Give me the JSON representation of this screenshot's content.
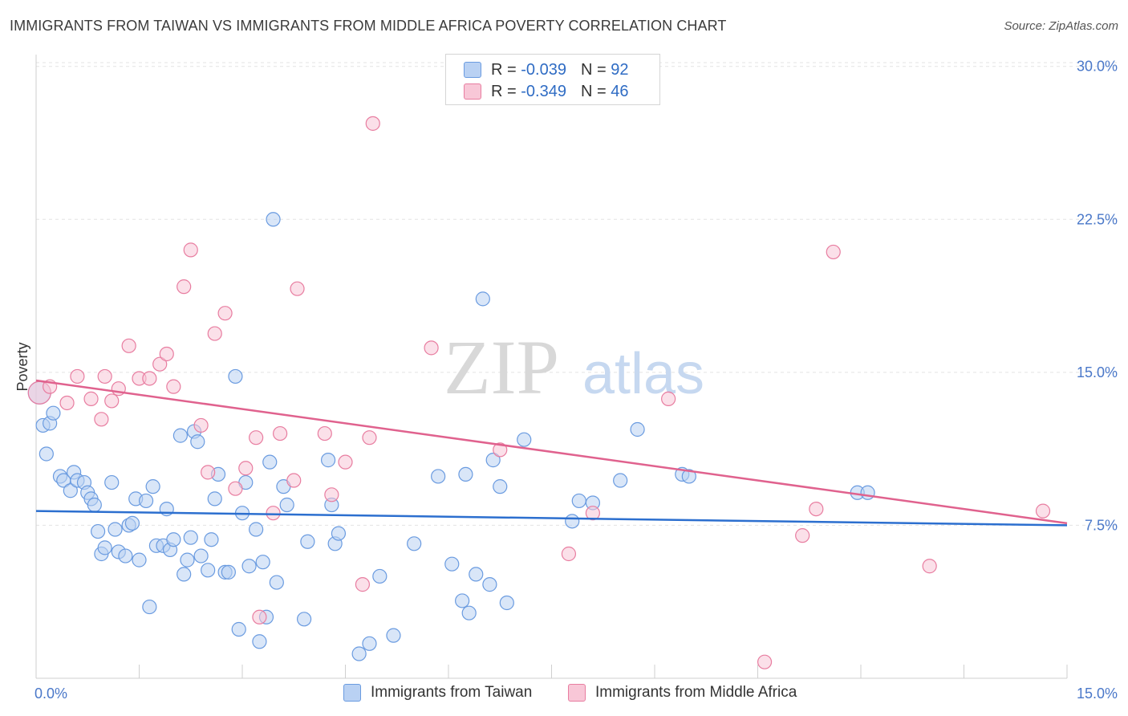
{
  "header": {
    "title": "IMMIGRANTS FROM TAIWAN VS IMMIGRANTS FROM MIDDLE AFRICA POVERTY CORRELATION CHART",
    "source": "Source: ZipAtlas.com"
  },
  "watermark": {
    "zip": "ZIP",
    "atlas": "atlas"
  },
  "legend": {
    "rows": [
      {
        "r_label": "R =",
        "r_value": "-0.039",
        "n_label": "N =",
        "n_value": "92"
      },
      {
        "r_label": "R =",
        "r_value": "-0.349",
        "n_label": "N =",
        "n_value": "46"
      }
    ]
  },
  "chart_data": {
    "type": "scatter",
    "ylabel": "Poverty",
    "xlim": [
      0,
      15
    ],
    "ylim": [
      0,
      30.5
    ],
    "x_tick_labels": [
      "0.0%",
      "15.0%"
    ],
    "y_ticks": [
      7.5,
      15.0,
      22.5,
      30.0
    ],
    "y_tick_labels": [
      "7.5%",
      "15.0%",
      "22.5%",
      "30.0%"
    ],
    "grid": true,
    "legend_position": "bottom",
    "series": [
      {
        "name": "Immigrants from Taiwan",
        "color": "#6a9be0",
        "fill": "#b9d1f3",
        "trend": {
          "x": [
            0,
            15
          ],
          "y": [
            8.2,
            7.5
          ]
        },
        "points": [
          [
            0.1,
            12.4
          ],
          [
            0.15,
            11.0
          ],
          [
            0.2,
            12.5
          ],
          [
            0.25,
            13.0
          ],
          [
            0.35,
            9.9
          ],
          [
            0.4,
            9.7
          ],
          [
            0.5,
            9.2
          ],
          [
            0.55,
            10.1
          ],
          [
            0.6,
            9.7
          ],
          [
            0.7,
            9.6
          ],
          [
            0.75,
            9.1
          ],
          [
            0.8,
            8.8
          ],
          [
            0.85,
            8.5
          ],
          [
            0.9,
            7.2
          ],
          [
            0.95,
            6.1
          ],
          [
            1.0,
            6.4
          ],
          [
            1.1,
            9.6
          ],
          [
            1.15,
            7.3
          ],
          [
            1.2,
            6.2
          ],
          [
            1.3,
            6.0
          ],
          [
            1.35,
            7.5
          ],
          [
            1.4,
            7.6
          ],
          [
            1.45,
            8.8
          ],
          [
            1.5,
            5.8
          ],
          [
            1.6,
            8.7
          ],
          [
            1.65,
            3.5
          ],
          [
            1.7,
            9.4
          ],
          [
            1.75,
            6.5
          ],
          [
            1.85,
            6.5
          ],
          [
            1.9,
            8.3
          ],
          [
            1.95,
            6.3
          ],
          [
            2.0,
            6.8
          ],
          [
            2.1,
            11.9
          ],
          [
            2.15,
            5.1
          ],
          [
            2.2,
            5.8
          ],
          [
            2.25,
            6.9
          ],
          [
            2.3,
            12.1
          ],
          [
            2.35,
            11.6
          ],
          [
            2.4,
            6.0
          ],
          [
            2.5,
            5.3
          ],
          [
            2.55,
            6.8
          ],
          [
            2.6,
            8.8
          ],
          [
            2.65,
            10.0
          ],
          [
            2.75,
            5.2
          ],
          [
            2.8,
            5.2
          ],
          [
            2.9,
            14.8
          ],
          [
            2.95,
            2.4
          ],
          [
            3.0,
            8.1
          ],
          [
            3.05,
            9.6
          ],
          [
            3.1,
            5.5
          ],
          [
            3.2,
            7.3
          ],
          [
            3.25,
            1.8
          ],
          [
            3.3,
            5.7
          ],
          [
            3.35,
            3.0
          ],
          [
            3.4,
            10.6
          ],
          [
            3.45,
            22.5
          ],
          [
            3.5,
            4.7
          ],
          [
            3.6,
            9.4
          ],
          [
            3.65,
            8.5
          ],
          [
            3.9,
            2.9
          ],
          [
            3.95,
            6.7
          ],
          [
            4.25,
            10.7
          ],
          [
            4.3,
            8.5
          ],
          [
            4.35,
            6.6
          ],
          [
            4.4,
            7.1
          ],
          [
            4.7,
            1.2
          ],
          [
            4.85,
            1.7
          ],
          [
            5.0,
            5.0
          ],
          [
            5.2,
            2.1
          ],
          [
            5.5,
            6.6
          ],
          [
            5.85,
            9.9
          ],
          [
            6.05,
            5.6
          ],
          [
            6.2,
            3.8
          ],
          [
            6.25,
            10.0
          ],
          [
            6.3,
            3.2
          ],
          [
            6.4,
            5.1
          ],
          [
            6.5,
            18.6
          ],
          [
            6.6,
            4.6
          ],
          [
            6.65,
            10.7
          ],
          [
            6.75,
            9.4
          ],
          [
            6.85,
            3.7
          ],
          [
            7.1,
            11.7
          ],
          [
            7.8,
            7.7
          ],
          [
            7.9,
            8.7
          ],
          [
            8.1,
            8.6
          ],
          [
            8.5,
            9.7
          ],
          [
            8.75,
            12.2
          ],
          [
            9.4,
            10.0
          ],
          [
            9.5,
            9.9
          ],
          [
            11.95,
            9.1
          ],
          [
            12.1,
            9.1
          ],
          [
            0.05,
            14.0
          ]
        ]
      },
      {
        "name": "Immigrants from Middle Africa",
        "color": "#e87da0",
        "fill": "#f8c7d7",
        "trend": {
          "x": [
            0,
            15
          ],
          "y": [
            14.6,
            7.6
          ]
        },
        "points": [
          [
            0.05,
            14.0
          ],
          [
            0.2,
            14.3
          ],
          [
            0.45,
            13.5
          ],
          [
            0.6,
            14.8
          ],
          [
            0.8,
            13.7
          ],
          [
            0.95,
            12.7
          ],
          [
            1.0,
            14.8
          ],
          [
            1.1,
            13.6
          ],
          [
            1.2,
            14.2
          ],
          [
            1.35,
            16.3
          ],
          [
            1.5,
            14.7
          ],
          [
            1.65,
            14.7
          ],
          [
            1.8,
            15.4
          ],
          [
            1.9,
            15.9
          ],
          [
            2.0,
            14.3
          ],
          [
            2.15,
            19.2
          ],
          [
            2.25,
            21.0
          ],
          [
            2.4,
            12.4
          ],
          [
            2.5,
            10.1
          ],
          [
            2.6,
            16.9
          ],
          [
            2.75,
            17.9
          ],
          [
            2.9,
            9.3
          ],
          [
            3.05,
            10.3
          ],
          [
            3.2,
            11.8
          ],
          [
            3.25,
            3.0
          ],
          [
            3.45,
            8.1
          ],
          [
            3.55,
            12.0
          ],
          [
            3.75,
            9.7
          ],
          [
            3.8,
            19.1
          ],
          [
            4.2,
            12.0
          ],
          [
            4.3,
            9.0
          ],
          [
            4.5,
            10.6
          ],
          [
            4.75,
            4.6
          ],
          [
            4.85,
            11.8
          ],
          [
            4.9,
            27.2
          ],
          [
            5.75,
            16.2
          ],
          [
            6.75,
            11.2
          ],
          [
            7.75,
            6.1
          ],
          [
            8.1,
            8.1
          ],
          [
            9.2,
            13.7
          ],
          [
            10.6,
            0.8
          ],
          [
            11.15,
            7.0
          ],
          [
            11.35,
            8.3
          ],
          [
            11.6,
            20.9
          ],
          [
            14.65,
            8.2
          ],
          [
            13.0,
            5.5
          ]
        ]
      }
    ]
  }
}
